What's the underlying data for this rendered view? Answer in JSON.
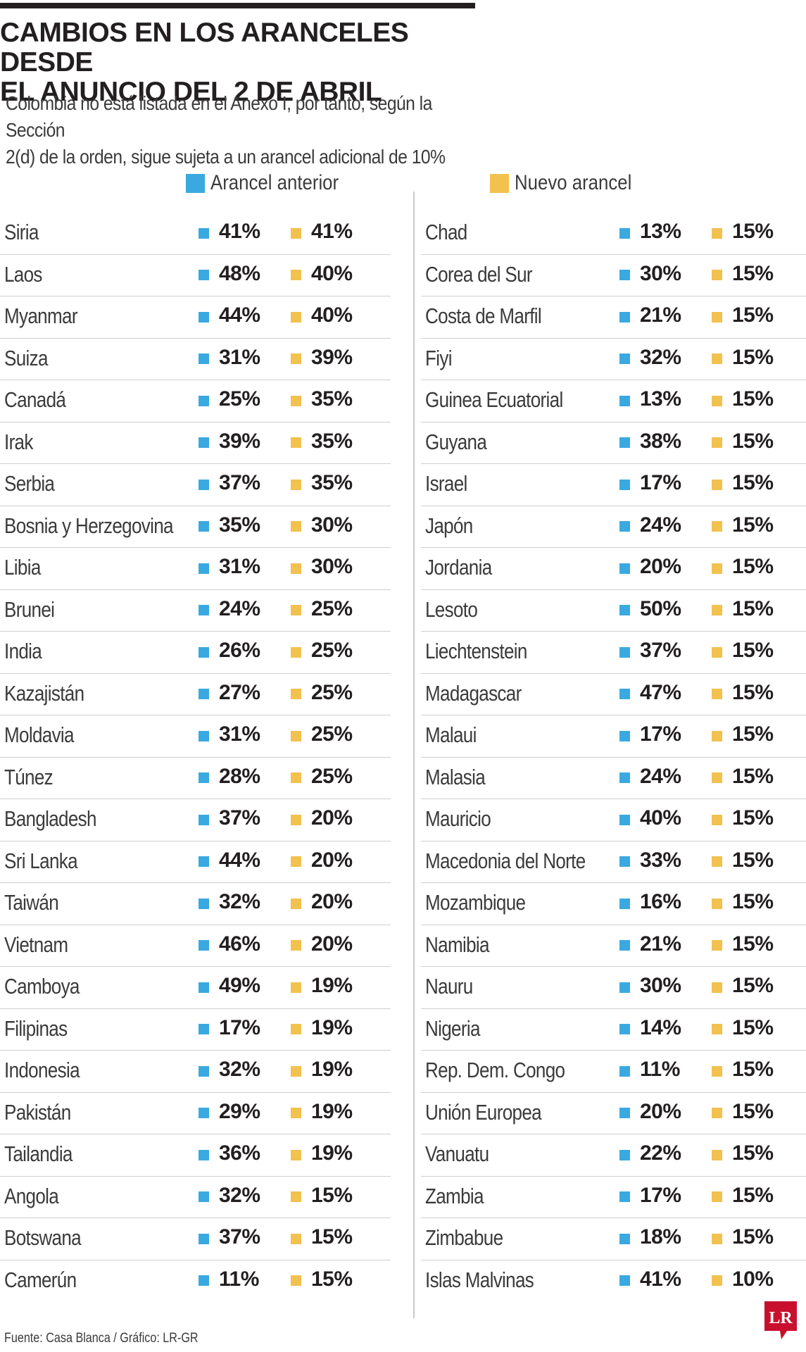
{
  "title_lines": [
    "CAMBIOS EN LOS ARANCELES DESDE",
    "EL ANUNCIO DEL 2 DE ABRIL"
  ],
  "subtitle_lines": [
    "Colombia no está listada en el Anexo I, por tanto, según la Sección",
    "2(d) de la orden, sigue sujeta a un arancel adicional de 10%"
  ],
  "legend": {
    "previous": {
      "label": "Arancel anterior",
      "color": "#3aa9e0"
    },
    "new": {
      "label": "Nuevo arancel",
      "color": "#f2c14e"
    }
  },
  "source": "Fuente: Casa Blanca / Gráfico: LR-GR",
  "logo_text": "LR",
  "colors": {
    "previous": "#3aa9e0",
    "new": "#f2c14e",
    "logo": "#c8102e"
  },
  "chart_data": {
    "type": "table",
    "columns": [
      "",
      "Arancel anterior",
      "Nuevo arancel"
    ],
    "rows": [
      {
        "country": "Siria",
        "previous": "41%",
        "new": "41%"
      },
      {
        "country": "Laos",
        "previous": "48%",
        "new": "40%"
      },
      {
        "country": "Myanmar",
        "previous": "44%",
        "new": "40%"
      },
      {
        "country": "Suiza",
        "previous": "31%",
        "new": "39%"
      },
      {
        "country": "Canadá",
        "previous": "25%",
        "new": "35%"
      },
      {
        "country": "Irak",
        "previous": "39%",
        "new": "35%"
      },
      {
        "country": "Serbia",
        "previous": "37%",
        "new": "35%"
      },
      {
        "country": "Bosnia y Herzegovina",
        "previous": "35%",
        "new": "30%"
      },
      {
        "country": "Libia",
        "previous": "31%",
        "new": "30%"
      },
      {
        "country": "Brunei",
        "previous": "24%",
        "new": "25%"
      },
      {
        "country": "India",
        "previous": "26%",
        "new": "25%"
      },
      {
        "country": "Kazajistán",
        "previous": "27%",
        "new": "25%"
      },
      {
        "country": "Moldavia",
        "previous": "31%",
        "new": "25%"
      },
      {
        "country": "Túnez",
        "previous": "28%",
        "new": "25%"
      },
      {
        "country": "Bangladesh",
        "previous": "37%",
        "new": "20%"
      },
      {
        "country": "Sri Lanka",
        "previous": "44%",
        "new": "20%"
      },
      {
        "country": "Taiwán",
        "previous": "32%",
        "new": "20%"
      },
      {
        "country": "Vietnam",
        "previous": "46%",
        "new": "20%"
      },
      {
        "country": "Camboya",
        "previous": "49%",
        "new": "19%"
      },
      {
        "country": "Filipinas",
        "previous": "17%",
        "new": "19%"
      },
      {
        "country": "Indonesia",
        "previous": "32%",
        "new": "19%"
      },
      {
        "country": "Pakistán",
        "previous": "29%",
        "new": "19%"
      },
      {
        "country": "Tailandia",
        "previous": "36%",
        "new": "19%"
      },
      {
        "country": "Angola",
        "previous": "32%",
        "new": "15%"
      },
      {
        "country": "Botswana",
        "previous": "37%",
        "new": "15%"
      },
      {
        "country": "Camerún",
        "previous": "11%",
        "new": "15%"
      },
      {
        "country": "Chad",
        "previous": "13%",
        "new": "15%"
      },
      {
        "country": "Corea del Sur",
        "previous": "30%",
        "new": "15%"
      },
      {
        "country": "Costa de Marfil",
        "previous": "21%",
        "new": "15%"
      },
      {
        "country": "Fiyi",
        "previous": "32%",
        "new": "15%"
      },
      {
        "country": "Guinea Ecuatorial",
        "previous": "13%",
        "new": "15%"
      },
      {
        "country": "Guyana",
        "previous": "38%",
        "new": "15%"
      },
      {
        "country": "Israel",
        "previous": "17%",
        "new": "15%"
      },
      {
        "country": "Japón",
        "previous": "24%",
        "new": "15%"
      },
      {
        "country": "Jordania",
        "previous": "20%",
        "new": "15%"
      },
      {
        "country": "Lesoto",
        "previous": "50%",
        "new": "15%"
      },
      {
        "country": "Liechtenstein",
        "previous": "37%",
        "new": "15%"
      },
      {
        "country": "Madagascar",
        "previous": "47%",
        "new": "15%"
      },
      {
        "country": "Malaui",
        "previous": "17%",
        "new": "15%"
      },
      {
        "country": "Malasia",
        "previous": "24%",
        "new": "15%"
      },
      {
        "country": "Mauricio",
        "previous": "40%",
        "new": "15%"
      },
      {
        "country": "Macedonia del Norte",
        "previous": "33%",
        "new": "15%"
      },
      {
        "country": "Mozambique",
        "previous": "16%",
        "new": "15%"
      },
      {
        "country": "Namibia",
        "previous": "21%",
        "new": "15%"
      },
      {
        "country": "Nauru",
        "previous": "30%",
        "new": "15%"
      },
      {
        "country": "Nigeria",
        "previous": "14%",
        "new": "15%"
      },
      {
        "country": "Rep. Dem. Congo",
        "previous": "11%",
        "new": "15%"
      },
      {
        "country": "Unión Europea",
        "previous": "20%",
        "new": "15%"
      },
      {
        "country": "Vanuatu",
        "previous": "22%",
        "new": "15%"
      },
      {
        "country": "Zambia",
        "previous": "17%",
        "new": "15%"
      },
      {
        "country": "Zimbabue",
        "previous": "18%",
        "new": "15%"
      },
      {
        "country": "Islas Malvinas",
        "previous": "41%",
        "new": "10%"
      }
    ]
  }
}
